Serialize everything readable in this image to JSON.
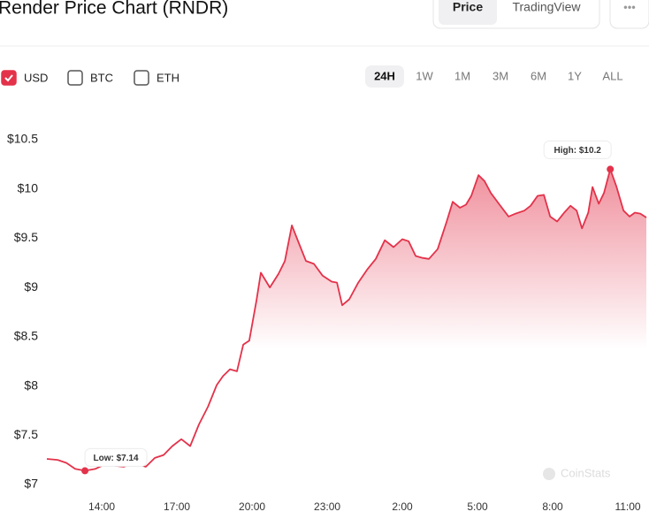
{
  "header": {
    "title": "Render Price Chart (RNDR)",
    "tabs": [
      "Price",
      "TradingView"
    ],
    "menu": "•••"
  },
  "controls": {
    "currencies": [
      "USD",
      "BTC",
      "ETH"
    ],
    "ranges": [
      "24H",
      "1W",
      "1M",
      "3M",
      "6M",
      "1Y",
      "ALL"
    ]
  },
  "watermark": "CoinStats",
  "chart_data": {
    "type": "area",
    "color": "#e3324a",
    "x": [
      11.81,
      12.24,
      12.59,
      12.94,
      13.33,
      13.75,
      14.18,
      14.53,
      14.88,
      15.24,
      15.76,
      16.12,
      16.47,
      16.82,
      17.18,
      17.53,
      17.88,
      18.24,
      18.59,
      18.84,
      19.12,
      19.4,
      19.65,
      19.89,
      20.18,
      20.35,
      20.71,
      21.06,
      21.31,
      21.59,
      21.87,
      22.15,
      22.47,
      22.82,
      23.18,
      23.39,
      23.6,
      23.88,
      24.24,
      24.59,
      24.94,
      25.3,
      25.65,
      26.0,
      26.25,
      26.53,
      26.81,
      27.06,
      27.41,
      27.77,
      28.01,
      28.3,
      28.54,
      28.75,
      29.04,
      29.28,
      29.53,
      29.88,
      30.24,
      30.52,
      30.87,
      31.12,
      31.4,
      31.65,
      31.9,
      32.18,
      32.46,
      32.71,
      32.96,
      33.17,
      33.42,
      33.59,
      33.84,
      34.05,
      34.3,
      34.54,
      34.83,
      35.07,
      35.28,
      35.5,
      35.74
    ],
    "values": [
      7.26,
      7.25,
      7.22,
      7.16,
      7.14,
      7.16,
      7.21,
      7.19,
      7.18,
      7.22,
      7.18,
      7.27,
      7.3,
      7.39,
      7.46,
      7.39,
      7.61,
      7.79,
      8.01,
      8.1,
      8.17,
      8.15,
      8.42,
      8.46,
      8.87,
      9.15,
      9.0,
      9.14,
      9.27,
      9.63,
      9.45,
      9.27,
      9.24,
      9.12,
      9.06,
      9.05,
      8.82,
      8.88,
      9.05,
      9.18,
      9.29,
      9.48,
      9.41,
      9.49,
      9.47,
      9.32,
      9.3,
      9.29,
      9.39,
      9.67,
      9.87,
      9.81,
      9.84,
      9.93,
      10.14,
      10.08,
      9.96,
      9.84,
      9.72,
      9.75,
      9.78,
      9.83,
      9.93,
      9.94,
      9.72,
      9.67,
      9.76,
      9.83,
      9.78,
      9.6,
      9.76,
      10.02,
      9.85,
      9.96,
      10.2,
      10.03,
      9.78,
      9.72,
      9.76,
      9.75,
      9.71
    ],
    "xlim": [
      11.81,
      35.74
    ],
    "ylim": [
      7,
      10.5
    ],
    "xticks": [
      {
        "value": 14,
        "label": "14:00"
      },
      {
        "value": 17,
        "label": "17:00"
      },
      {
        "value": 20,
        "label": "20:00"
      },
      {
        "value": 23,
        "label": "23:00"
      },
      {
        "value": 26,
        "label": "2:00"
      },
      {
        "value": 29,
        "label": "5:00"
      },
      {
        "value": 32,
        "label": "8:00"
      },
      {
        "value": 35,
        "label": "11:00"
      }
    ],
    "yticks": [
      {
        "value": 7,
        "label": "$7"
      },
      {
        "value": 7.5,
        "label": "$7.5"
      },
      {
        "value": 8,
        "label": "$8"
      },
      {
        "value": 8.5,
        "label": "$8.5"
      },
      {
        "value": 9,
        "label": "$9"
      },
      {
        "value": 9.5,
        "label": "$9.5"
      },
      {
        "value": 10,
        "label": "$10"
      },
      {
        "value": 10.5,
        "label": "$10.5"
      }
    ],
    "annotations": [
      {
        "label": "Low: $7.14",
        "x": 13.33,
        "y": 7.14
      },
      {
        "label": "High: $10.2",
        "x": 34.3,
        "y": 10.2
      }
    ]
  }
}
